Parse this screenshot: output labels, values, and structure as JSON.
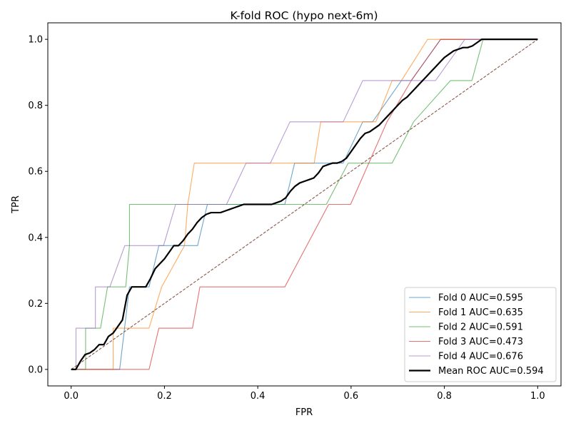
{
  "chart_data": {
    "type": "line",
    "title": "K-fold ROC (hypo next-6m)",
    "xlabel": "FPR",
    "ylabel": "TPR",
    "xlim": [
      -0.05,
      1.05
    ],
    "ylim": [
      -0.05,
      1.05
    ],
    "xticks": [
      "0.0",
      "0.2",
      "0.4",
      "0.6",
      "0.8",
      "1.0"
    ],
    "yticks": [
      "0.0",
      "0.2",
      "0.4",
      "0.6",
      "0.8",
      "1.0"
    ],
    "grid": false,
    "legend_position": "lower-right",
    "series": [
      {
        "name": "Fold 0 AUC=0.595",
        "color": "#1f77b4",
        "x": [
          0,
          0.104,
          0.125,
          0.125,
          0.146,
          0.167,
          0.188,
          0.271,
          0.292,
          0.292,
          0.438,
          0.458,
          0.479,
          0.479,
          0.563,
          0.583,
          0.625,
          0.646,
          0.708,
          0.729,
          0.792,
          0.833,
          0.854,
          1.0
        ],
        "y": [
          0,
          0,
          0.25,
          0.25,
          0.25,
          0.25,
          0.375,
          0.375,
          0.5,
          0.5,
          0.5,
          0.5,
          0.625,
          0.625,
          0.625,
          0.625,
          0.75,
          0.75,
          0.875,
          0.875,
          1.0,
          1.0,
          1.0,
          1.0
        ]
      },
      {
        "name": "Fold 1 AUC=0.635",
        "color": "#ff7f0e",
        "x": [
          0,
          0.09,
          0.09,
          0.167,
          0.194,
          0.243,
          0.25,
          0.264,
          0.521,
          0.535,
          0.639,
          0.653,
          0.688,
          0.708,
          0.764,
          0.806,
          1.0
        ],
        "y": [
          0,
          0,
          0.125,
          0.125,
          0.25,
          0.375,
          0.5,
          0.625,
          0.625,
          0.75,
          0.75,
          0.75,
          0.875,
          0.875,
          1.0,
          1.0,
          1.0
        ],
        "auc_label": "AUC=0.635"
      },
      {
        "name": "Fold 2 AUC=0.591",
        "color": "#2ca02c",
        "x": [
          0,
          0.031,
          0.031,
          0.063,
          0.078,
          0.078,
          0.117,
          0.125,
          0.125,
          0.438,
          0.5,
          0.547,
          0.594,
          0.609,
          0.625,
          0.688,
          0.734,
          0.813,
          0.859,
          0.883,
          1.0
        ],
        "y": [
          0,
          0,
          0.125,
          0.125,
          0.25,
          0.25,
          0.25,
          0.375,
          0.5,
          0.5,
          0.5,
          0.5,
          0.625,
          0.625,
          0.625,
          0.625,
          0.75,
          0.875,
          0.875,
          1.0,
          1.0
        ]
      },
      {
        "name": "Fold 3 AUC=0.473",
        "color": "#d62728",
        "x": [
          0,
          0.167,
          0.188,
          0.188,
          0.26,
          0.276,
          0.458,
          0.552,
          0.563,
          0.599,
          0.677,
          0.729,
          0.792,
          0.802,
          0.833,
          1.0
        ],
        "y": [
          0,
          0,
          0.125,
          0.125,
          0.125,
          0.25,
          0.25,
          0.5,
          0.5,
          0.5,
          0.75,
          0.875,
          1.0,
          1.0,
          1.0,
          1.0
        ]
      },
      {
        "name": "Fold 4 AUC=0.676",
        "color": "#9467bd",
        "x": [
          0,
          0.0104,
          0.0104,
          0.052,
          0.052,
          0.083,
          0.115,
          0.125,
          0.198,
          0.224,
          0.318,
          0.333,
          0.375,
          0.385,
          0.427,
          0.469,
          0.5,
          0.573,
          0.583,
          0.625,
          0.76,
          0.781,
          0.844,
          0.875,
          1.0
        ],
        "y": [
          0,
          0,
          0.125,
          0.125,
          0.25,
          0.25,
          0.375,
          0.375,
          0.375,
          0.5,
          0.5,
          0.5,
          0.625,
          0.625,
          0.625,
          0.75,
          0.75,
          0.75,
          0.75,
          0.875,
          0.875,
          0.875,
          1.0,
          1.0,
          1.0
        ]
      },
      {
        "name": "Mean ROC AUC=0.594",
        "color": "#000000",
        "x": [
          0,
          0.01,
          0.02,
          0.03,
          0.04,
          0.05,
          0.06,
          0.07,
          0.08,
          0.09,
          0.1,
          0.11,
          0.12,
          0.13,
          0.14,
          0.16,
          0.17,
          0.18,
          0.19,
          0.2,
          0.21,
          0.22,
          0.23,
          0.24,
          0.25,
          0.26,
          0.27,
          0.28,
          0.29,
          0.3,
          0.31,
          0.32,
          0.33,
          0.34,
          0.35,
          0.36,
          0.37,
          0.38,
          0.4,
          0.42,
          0.43,
          0.44,
          0.45,
          0.46,
          0.47,
          0.48,
          0.49,
          0.5,
          0.51,
          0.52,
          0.53,
          0.54,
          0.55,
          0.56,
          0.57,
          0.58,
          0.59,
          0.6,
          0.61,
          0.62,
          0.63,
          0.64,
          0.65,
          0.66,
          0.67,
          0.68,
          0.69,
          0.7,
          0.71,
          0.72,
          0.73,
          0.74,
          0.75,
          0.76,
          0.77,
          0.78,
          0.79,
          0.8,
          0.81,
          0.82,
          0.83,
          0.84,
          0.85,
          0.86,
          0.87,
          0.88,
          0.89,
          0.9,
          1.0
        ],
        "y": [
          0,
          0,
          0.025,
          0.045,
          0.05,
          0.06,
          0.075,
          0.075,
          0.1,
          0.11,
          0.13,
          0.15,
          0.225,
          0.25,
          0.25,
          0.25,
          0.275,
          0.305,
          0.32,
          0.335,
          0.355,
          0.375,
          0.375,
          0.39,
          0.41,
          0.425,
          0.445,
          0.46,
          0.47,
          0.475,
          0.475,
          0.475,
          0.48,
          0.485,
          0.49,
          0.495,
          0.5,
          0.5,
          0.5,
          0.5,
          0.5,
          0.505,
          0.51,
          0.52,
          0.54,
          0.555,
          0.565,
          0.57,
          0.575,
          0.58,
          0.595,
          0.615,
          0.62,
          0.625,
          0.625,
          0.63,
          0.64,
          0.66,
          0.68,
          0.7,
          0.715,
          0.72,
          0.73,
          0.74,
          0.755,
          0.77,
          0.785,
          0.8,
          0.815,
          0.825,
          0.84,
          0.855,
          0.87,
          0.885,
          0.9,
          0.915,
          0.93,
          0.945,
          0.955,
          0.965,
          0.97,
          0.975,
          0.975,
          0.98,
          0.99,
          1.0,
          1.0,
          1.0,
          1.0
        ]
      },
      {
        "name": "",
        "color": "#8c564b",
        "dashed": true,
        "x": [
          0,
          1
        ],
        "y": [
          0,
          1
        ]
      }
    ]
  }
}
